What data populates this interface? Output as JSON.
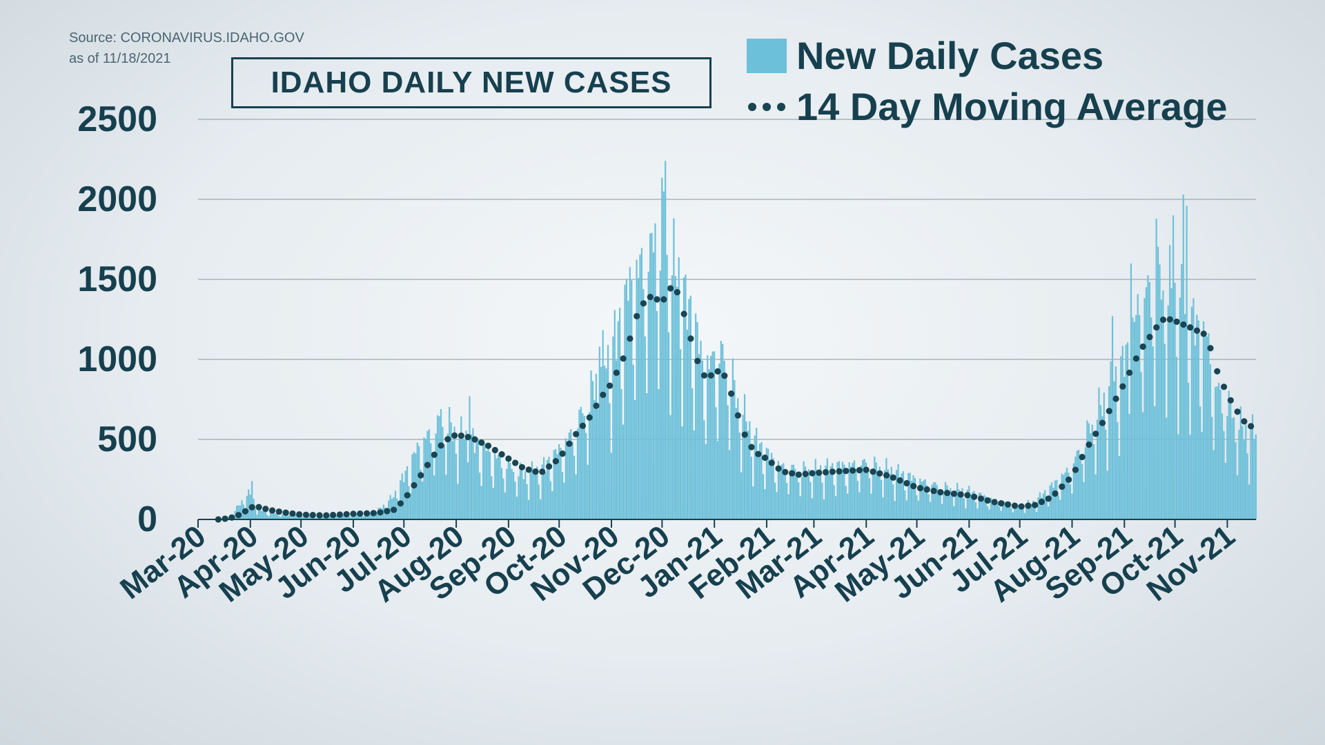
{
  "source": {
    "line1": "Source: CORONAVIRUS.IDAHO.GOV",
    "line2": "as of 11/18/2021"
  },
  "legend": {
    "bars_label": "New Daily Cases",
    "line_label": "14 Day Moving Average"
  },
  "colors": {
    "bar": "#6dc0d9",
    "line_dots": "#1a4452",
    "text": "#17404f",
    "grid": "#9aa8b0"
  },
  "chart_data": {
    "type": "bar",
    "title": "IDAHO DAILY NEW CASES",
    "xlabel": "",
    "ylabel": "",
    "ylim": [
      0,
      2500
    ],
    "yticks": [
      0,
      500,
      1000,
      1500,
      2000,
      2500
    ],
    "x_start": "2020-03-13",
    "x_end": "2021-11-18",
    "x_ticks": [
      {
        "label": "Mar-20",
        "date": "2020-03-01"
      },
      {
        "label": "Apr-20",
        "date": "2020-04-01"
      },
      {
        "label": "May-20",
        "date": "2020-05-01"
      },
      {
        "label": "Jun-20",
        "date": "2020-06-01"
      },
      {
        "label": "Jul-20",
        "date": "2020-07-01"
      },
      {
        "label": "Aug-20",
        "date": "2020-08-01"
      },
      {
        "label": "Sep-20",
        "date": "2020-09-01"
      },
      {
        "label": "Oct-20",
        "date": "2020-10-01"
      },
      {
        "label": "Nov-20",
        "date": "2020-11-01"
      },
      {
        "label": "Dec-20",
        "date": "2020-12-01"
      },
      {
        "label": "Jan-21",
        "date": "2021-01-01"
      },
      {
        "label": "Feb-21",
        "date": "2021-02-01"
      },
      {
        "label": "Mar-21",
        "date": "2021-03-01"
      },
      {
        "label": "Apr-21",
        "date": "2021-04-01"
      },
      {
        "label": "May-21",
        "date": "2021-05-01"
      },
      {
        "label": "Jun-21",
        "date": "2021-06-01"
      },
      {
        "label": "Jul-21",
        "date": "2021-07-01"
      },
      {
        "label": "Aug-21",
        "date": "2021-08-01"
      },
      {
        "label": "Sep-21",
        "date": "2021-09-01"
      },
      {
        "label": "Oct-21",
        "date": "2021-10-01"
      },
      {
        "label": "Nov-21",
        "date": "2021-11-01"
      }
    ],
    "series": [
      {
        "name": "New Daily Cases",
        "type": "bar",
        "points": [
          [
            "2020-03-13",
            2
          ],
          [
            "2020-03-20",
            15
          ],
          [
            "2020-03-27",
            110
          ],
          [
            "2020-04-01",
            160
          ],
          [
            "2020-04-05",
            70
          ],
          [
            "2020-04-12",
            40
          ],
          [
            "2020-04-20",
            30
          ],
          [
            "2020-05-01",
            25
          ],
          [
            "2020-05-15",
            20
          ],
          [
            "2020-06-01",
            30
          ],
          [
            "2020-06-15",
            50
          ],
          [
            "2020-06-25",
            140
          ],
          [
            "2020-07-01",
            260
          ],
          [
            "2020-07-10",
            450
          ],
          [
            "2020-07-20",
            560
          ],
          [
            "2020-07-25",
            600
          ],
          [
            "2020-08-01",
            530
          ],
          [
            "2020-08-10",
            480
          ],
          [
            "2020-08-20",
            420
          ],
          [
            "2020-09-01",
            320
          ],
          [
            "2020-09-10",
            280
          ],
          [
            "2020-09-20",
            300
          ],
          [
            "2020-10-01",
            420
          ],
          [
            "2020-10-10",
            540
          ],
          [
            "2020-10-20",
            760
          ],
          [
            "2020-10-25",
            920
          ],
          [
            "2020-11-01",
            1000
          ],
          [
            "2020-11-10",
            1350
          ],
          [
            "2020-11-15",
            1500
          ],
          [
            "2020-11-20",
            1550
          ],
          [
            "2020-11-25",
            1600
          ],
          [
            "2020-12-01",
            1750
          ],
          [
            "2020-12-05",
            1500
          ],
          [
            "2020-12-10",
            1500
          ],
          [
            "2020-12-15",
            1350
          ],
          [
            "2020-12-20",
            1200
          ],
          [
            "2020-12-25",
            950
          ],
          [
            "2021-01-01",
            950
          ],
          [
            "2021-01-05",
            1000
          ],
          [
            "2021-01-10",
            900
          ],
          [
            "2021-01-15",
            720
          ],
          [
            "2021-01-20",
            600
          ],
          [
            "2021-01-25",
            480
          ],
          [
            "2021-02-01",
            400
          ],
          [
            "2021-02-10",
            320
          ],
          [
            "2021-02-20",
            300
          ],
          [
            "2021-03-01",
            300
          ],
          [
            "2021-03-15",
            320
          ],
          [
            "2021-04-01",
            340
          ],
          [
            "2021-04-15",
            300
          ],
          [
            "2021-05-01",
            240
          ],
          [
            "2021-05-15",
            200
          ],
          [
            "2021-06-01",
            170
          ],
          [
            "2021-06-15",
            120
          ],
          [
            "2021-07-01",
            80
          ],
          [
            "2021-07-10",
            110
          ],
          [
            "2021-07-20",
            200
          ],
          [
            "2021-08-01",
            320
          ],
          [
            "2021-08-10",
            520
          ],
          [
            "2021-08-20",
            720
          ],
          [
            "2021-09-01",
            950
          ],
          [
            "2021-09-10",
            1300
          ],
          [
            "2021-09-20",
            1450
          ],
          [
            "2021-09-25",
            1400
          ],
          [
            "2021-10-01",
            1350
          ],
          [
            "2021-10-10",
            1200
          ],
          [
            "2021-10-20",
            1100
          ],
          [
            "2021-10-25",
            800
          ],
          [
            "2021-11-01",
            700
          ],
          [
            "2021-11-10",
            550
          ],
          [
            "2021-11-18",
            520
          ]
        ],
        "spikes": [
          [
            "2020-04-02",
            240
          ],
          [
            "2020-07-23",
            690
          ],
          [
            "2020-08-09",
            770
          ],
          [
            "2020-10-25",
            1080
          ],
          [
            "2020-11-27",
            1850
          ],
          [
            "2020-12-03",
            2240
          ],
          [
            "2020-12-02",
            2050
          ],
          [
            "2020-12-15",
            1530
          ],
          [
            "2021-01-01",
            1050
          ],
          [
            "2021-08-25",
            1270
          ],
          [
            "2021-09-05",
            1600
          ],
          [
            "2021-09-20",
            1880
          ],
          [
            "2021-09-30",
            1900
          ],
          [
            "2021-10-06",
            2030
          ],
          [
            "2021-10-08",
            1960
          ]
        ]
      },
      {
        "name": "14 Day Moving Average",
        "type": "line",
        "points": [
          [
            "2020-03-13",
            0
          ],
          [
            "2020-03-20",
            8
          ],
          [
            "2020-03-27",
            35
          ],
          [
            "2020-04-01",
            75
          ],
          [
            "2020-04-05",
            80
          ],
          [
            "2020-04-12",
            60
          ],
          [
            "2020-04-20",
            45
          ],
          [
            "2020-05-01",
            30
          ],
          [
            "2020-05-15",
            25
          ],
          [
            "2020-06-01",
            35
          ],
          [
            "2020-06-15",
            40
          ],
          [
            "2020-06-25",
            60
          ],
          [
            "2020-07-01",
            120
          ],
          [
            "2020-07-10",
            260
          ],
          [
            "2020-07-20",
            420
          ],
          [
            "2020-07-25",
            490
          ],
          [
            "2020-08-01",
            530
          ],
          [
            "2020-08-10",
            510
          ],
          [
            "2020-08-20",
            460
          ],
          [
            "2020-09-01",
            380
          ],
          [
            "2020-09-10",
            320
          ],
          [
            "2020-09-20",
            290
          ],
          [
            "2020-10-01",
            380
          ],
          [
            "2020-10-10",
            520
          ],
          [
            "2020-10-20",
            650
          ],
          [
            "2020-10-25",
            750
          ],
          [
            "2020-11-01",
            850
          ],
          [
            "2020-11-10",
            1050
          ],
          [
            "2020-11-15",
            1250
          ],
          [
            "2020-11-20",
            1350
          ],
          [
            "2020-11-25",
            1400
          ],
          [
            "2020-12-01",
            1350
          ],
          [
            "2020-12-05",
            1450
          ],
          [
            "2020-12-10",
            1420
          ],
          [
            "2020-12-15",
            1250
          ],
          [
            "2020-12-20",
            1050
          ],
          [
            "2020-12-25",
            900
          ],
          [
            "2021-01-01",
            900
          ],
          [
            "2021-01-05",
            950
          ],
          [
            "2021-01-10",
            820
          ],
          [
            "2021-01-15",
            650
          ],
          [
            "2021-01-20",
            500
          ],
          [
            "2021-01-25",
            420
          ],
          [
            "2021-02-01",
            380
          ],
          [
            "2021-02-10",
            300
          ],
          [
            "2021-02-20",
            280
          ],
          [
            "2021-03-01",
            290
          ],
          [
            "2021-03-15",
            300
          ],
          [
            "2021-04-01",
            310
          ],
          [
            "2021-04-15",
            270
          ],
          [
            "2021-05-01",
            200
          ],
          [
            "2021-05-15",
            170
          ],
          [
            "2021-06-01",
            150
          ],
          [
            "2021-06-15",
            110
          ],
          [
            "2021-07-01",
            80
          ],
          [
            "2021-07-10",
            90
          ],
          [
            "2021-07-20",
            140
          ],
          [
            "2021-08-01",
            270
          ],
          [
            "2021-08-10",
            450
          ],
          [
            "2021-08-20",
            620
          ],
          [
            "2021-09-01",
            850
          ],
          [
            "2021-09-10",
            1050
          ],
          [
            "2021-09-20",
            1200
          ],
          [
            "2021-09-25",
            1260
          ],
          [
            "2021-10-01",
            1240
          ],
          [
            "2021-10-10",
            1200
          ],
          [
            "2021-10-20",
            1150
          ],
          [
            "2021-10-25",
            950
          ],
          [
            "2021-11-01",
            780
          ],
          [
            "2021-11-10",
            620
          ],
          [
            "2021-11-18",
            560
          ]
        ]
      }
    ]
  }
}
